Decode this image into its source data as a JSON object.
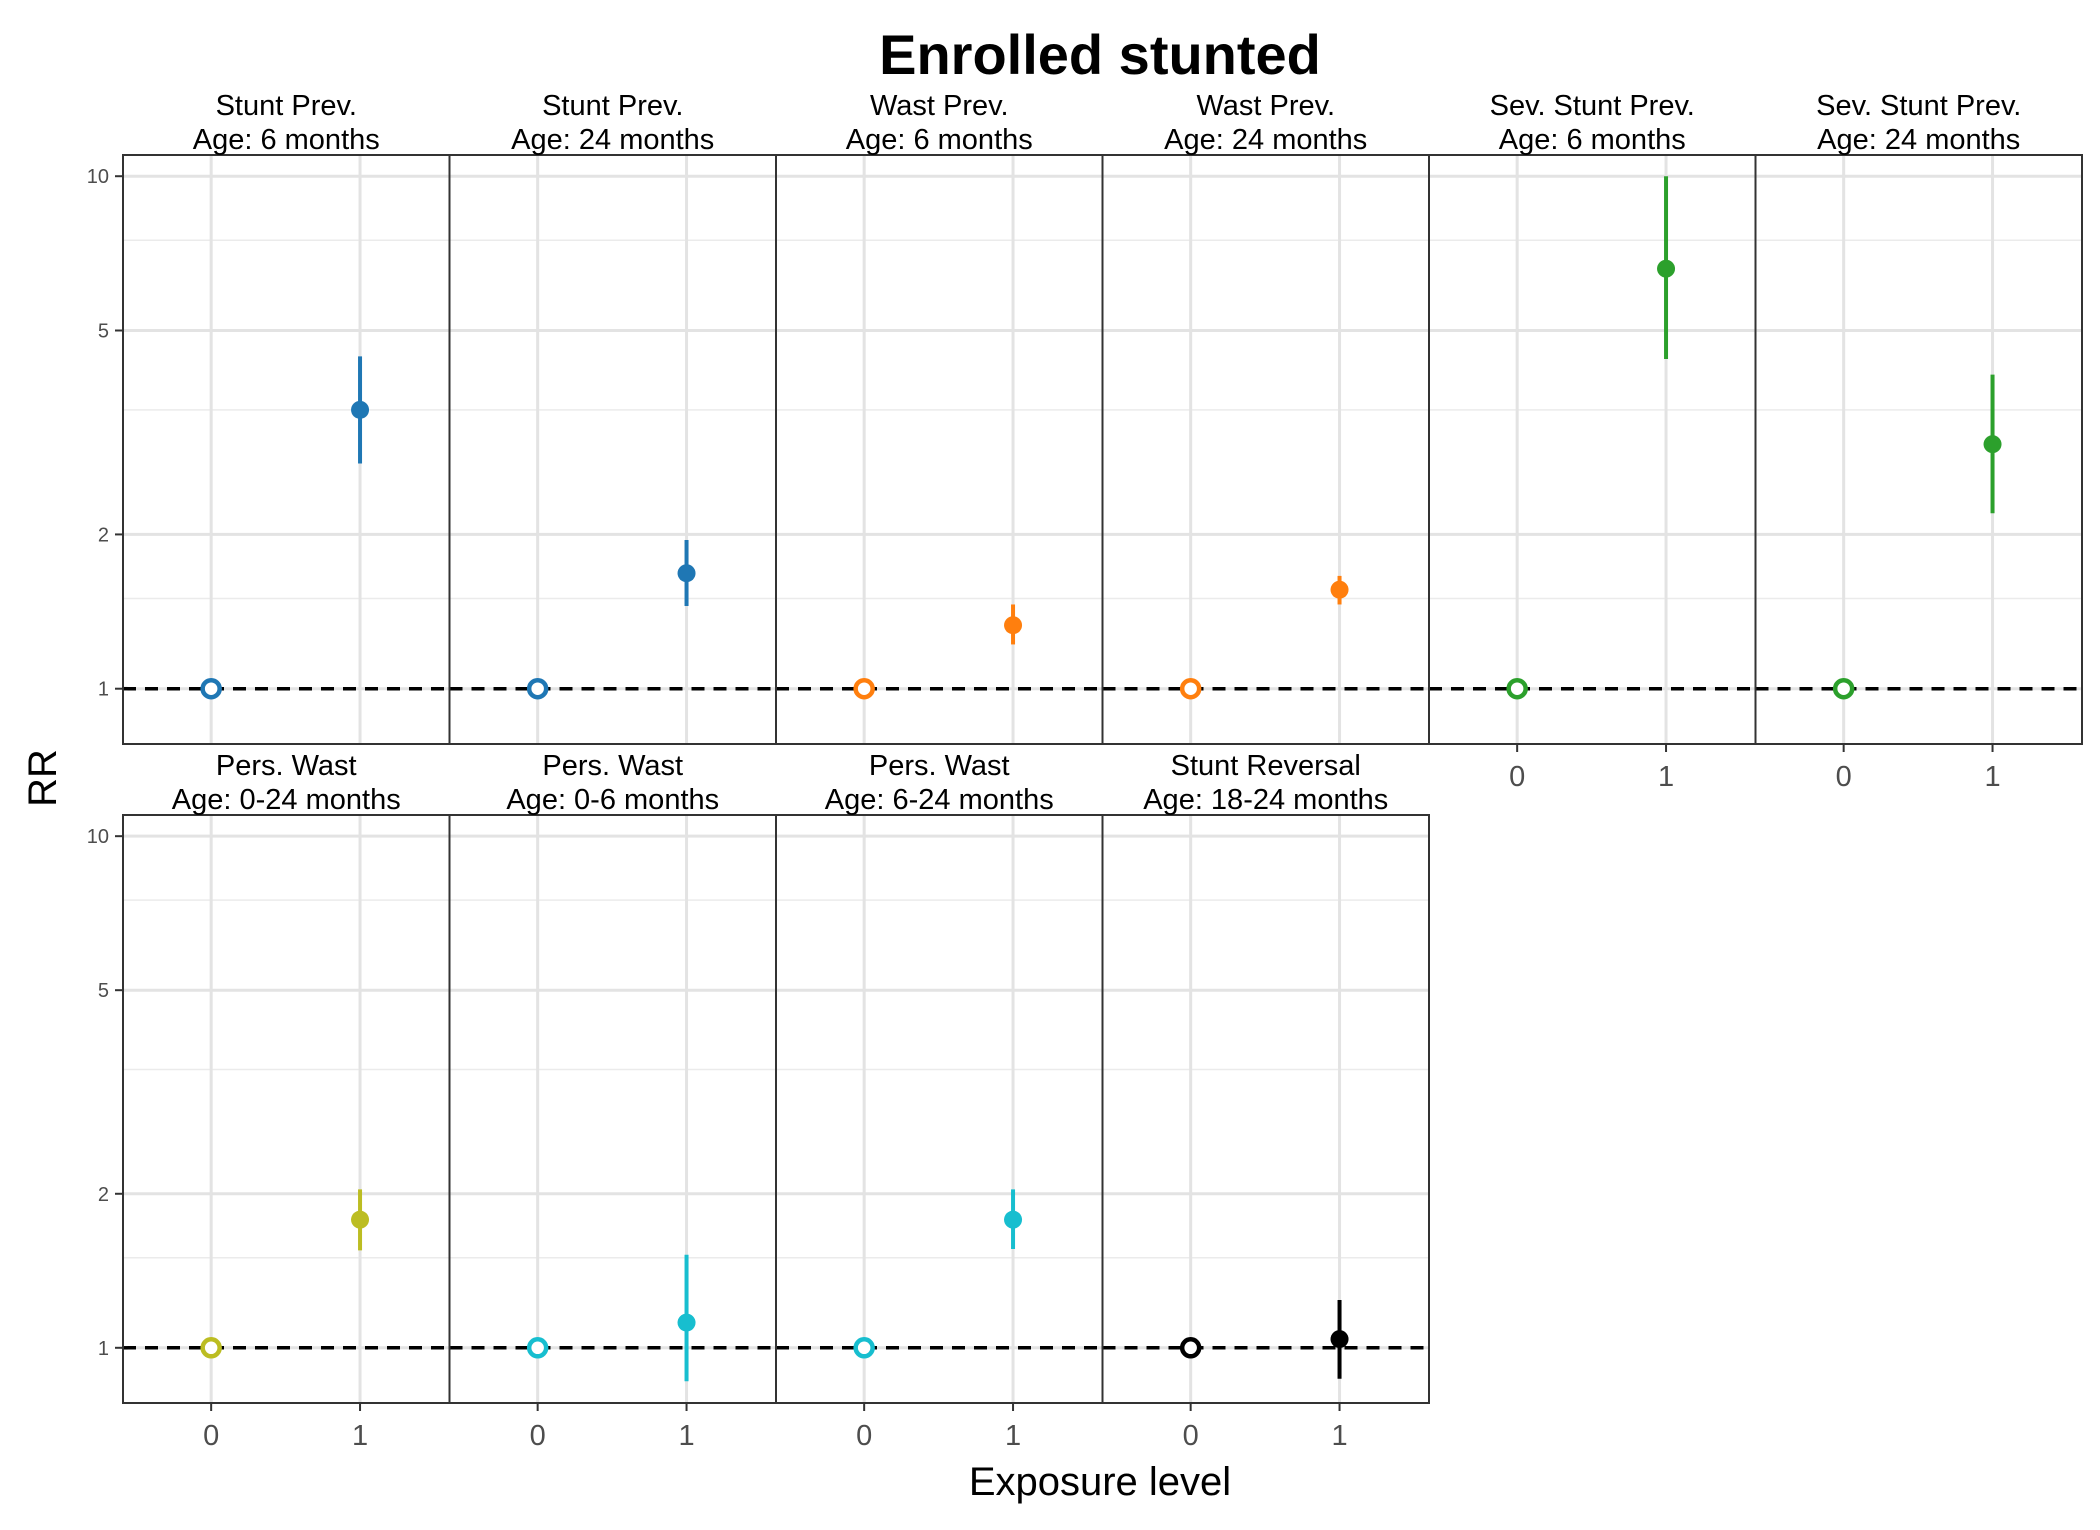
{
  "chart_data": {
    "type": "scatter",
    "title": "Enrolled stunted",
    "xlabel": "Exposure level",
    "ylabel": "RR",
    "y_scale": "log",
    "ylim": [
      0.78,
      11.0
    ],
    "y_ticks": [
      1,
      2,
      5,
      10
    ],
    "x_ticks": [
      "0",
      "1"
    ],
    "reference_line": 1,
    "grid": true,
    "panels": [
      {
        "title_line1": "Stunt Prev.",
        "title_line2": "Age: 6 months",
        "color": "#1F77B4",
        "points": [
          {
            "x": "0",
            "rr": 1,
            "reference": true
          },
          {
            "x": "1",
            "rr": 3.5,
            "ci_lower": 2.75,
            "ci_upper": 4.45
          }
        ]
      },
      {
        "title_line1": "Stunt Prev.",
        "title_line2": "Age: 24 months",
        "color": "#1F77B4",
        "points": [
          {
            "x": "0",
            "rr": 1,
            "reference": true
          },
          {
            "x": "1",
            "rr": 1.68,
            "ci_lower": 1.45,
            "ci_upper": 1.95
          }
        ]
      },
      {
        "title_line1": "Wast Prev.",
        "title_line2": "Age: 6 months",
        "color": "#FF7F0E",
        "points": [
          {
            "x": "0",
            "rr": 1,
            "reference": true
          },
          {
            "x": "1",
            "rr": 1.33,
            "ci_lower": 1.22,
            "ci_upper": 1.46
          }
        ]
      },
      {
        "title_line1": "Wast Prev.",
        "title_line2": "Age: 24 months",
        "color": "#FF7F0E",
        "points": [
          {
            "x": "0",
            "rr": 1,
            "reference": true
          },
          {
            "x": "1",
            "rr": 1.56,
            "ci_lower": 1.46,
            "ci_upper": 1.66
          }
        ]
      },
      {
        "title_line1": "Sev. Stunt Prev.",
        "title_line2": "Age: 6 months",
        "color": "#2CA02C",
        "points": [
          {
            "x": "0",
            "rr": 1,
            "reference": true
          },
          {
            "x": "1",
            "rr": 6.6,
            "ci_lower": 4.4,
            "ci_upper": 10.0
          }
        ]
      },
      {
        "title_line1": "Sev. Stunt Prev.",
        "title_line2": "Age: 24 months",
        "color": "#2CA02C",
        "points": [
          {
            "x": "0",
            "rr": 1,
            "reference": true
          },
          {
            "x": "1",
            "rr": 3.0,
            "ci_lower": 2.2,
            "ci_upper": 4.1
          }
        ]
      },
      {
        "title_line1": "Pers. Wast",
        "title_line2": "Age: 0-24 months",
        "color": "#BCBD22",
        "points": [
          {
            "x": "0",
            "rr": 1,
            "reference": true
          },
          {
            "x": "1",
            "rr": 1.78,
            "ci_lower": 1.55,
            "ci_upper": 2.04
          }
        ]
      },
      {
        "title_line1": "Pers. Wast",
        "title_line2": "Age: 0-6 months",
        "color": "#17BECF",
        "points": [
          {
            "x": "0",
            "rr": 1,
            "reference": true
          },
          {
            "x": "1",
            "rr": 1.12,
            "ci_lower": 0.86,
            "ci_upper": 1.52
          }
        ]
      },
      {
        "title_line1": "Pers. Wast",
        "title_line2": "Age: 6-24 months",
        "color": "#17BECF",
        "points": [
          {
            "x": "0",
            "rr": 1,
            "reference": true
          },
          {
            "x": "1",
            "rr": 1.78,
            "ci_lower": 1.56,
            "ci_upper": 2.04
          }
        ]
      },
      {
        "title_line1": "Stunt Reversal",
        "title_line2": "Age: 18-24 months",
        "color": "#000000",
        "points": [
          {
            "x": "0",
            "rr": 1,
            "reference": true
          },
          {
            "x": "1",
            "rr": 1.04,
            "ci_lower": 0.87,
            "ci_upper": 1.24
          }
        ]
      }
    ]
  }
}
